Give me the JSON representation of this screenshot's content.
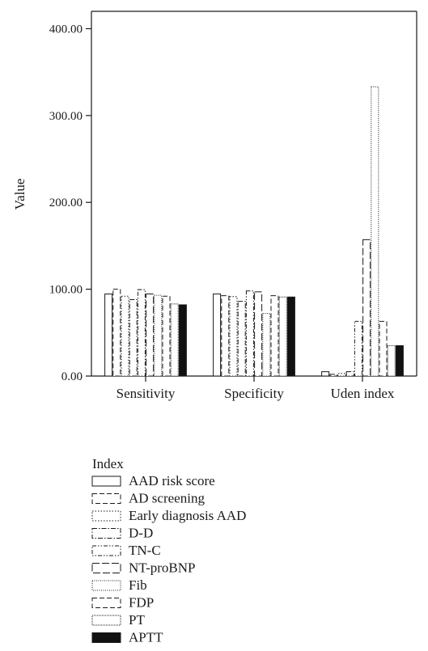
{
  "chart_data": {
    "type": "bar",
    "ylabel": "Value",
    "ylim": [
      0,
      420
    ],
    "yticks": [
      0,
      100,
      200,
      300,
      400
    ],
    "ytick_labels": [
      "0.00",
      "100.00",
      "200.00",
      "300.00",
      "400.00"
    ],
    "categories": [
      "Sensitivity",
      "Specificity",
      "Uden index"
    ],
    "legend_title": "Index",
    "legend_position": "bottom",
    "series": [
      {
        "name": "AAD risk score",
        "values": [
          94.5,
          94.5,
          5
        ],
        "pattern": "solid-outline"
      },
      {
        "name": "AD screening",
        "values": [
          100,
          92.5,
          2
        ],
        "pattern": "dashed"
      },
      {
        "name": "Early diagnosis AAD",
        "values": [
          92,
          91.5,
          3
        ],
        "pattern": "dotted"
      },
      {
        "name": "D-D",
        "values": [
          88,
          86,
          5
        ],
        "pattern": "dash-dot"
      },
      {
        "name": "TN-C",
        "values": [
          99.5,
          98,
          63
        ],
        "pattern": "dash-dot-dot"
      },
      {
        "name": "NT-proBNP",
        "values": [
          94.5,
          97,
          157
        ],
        "pattern": "long-dash"
      },
      {
        "name": "Fib",
        "values": [
          93,
          72,
          333
        ],
        "pattern": "fine-dotted"
      },
      {
        "name": "FDP",
        "values": [
          92,
          92.5,
          63
        ],
        "pattern": "dashed"
      },
      {
        "name": "PT",
        "values": [
          83,
          91,
          35
        ],
        "pattern": "dense-dotted"
      },
      {
        "name": "APTT",
        "values": [
          82,
          91,
          35
        ],
        "pattern": "filled",
        "color": "#111111"
      }
    ]
  }
}
